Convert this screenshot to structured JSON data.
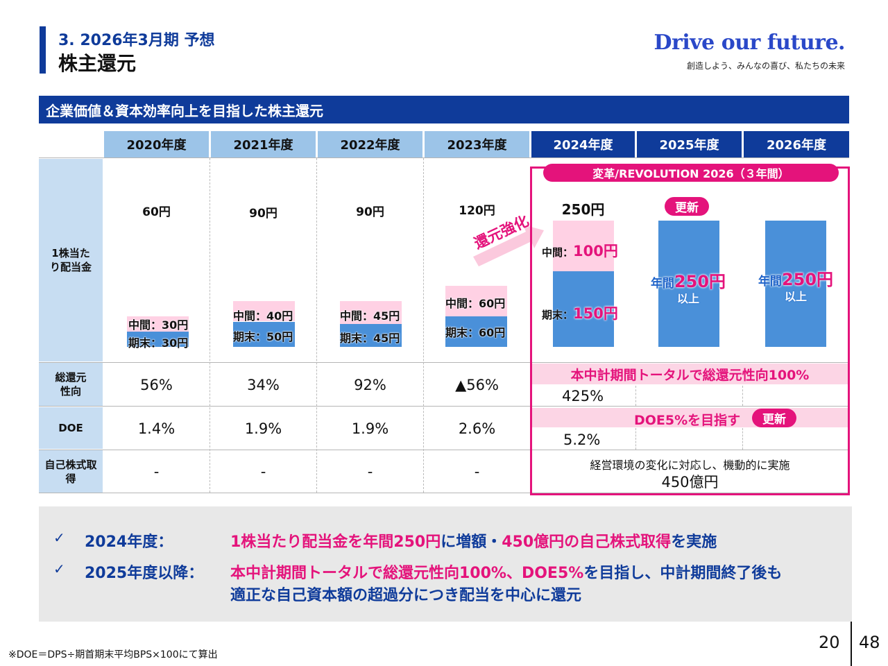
{
  "header": {
    "section": "3.  2026年3月期 予想",
    "title": "株主還元",
    "logo": "Drive our future.",
    "tagline": "創造しよう、みんなの喜び、私たちの未来"
  },
  "banner": "企業価値＆資本効率向上を目指した株主還元",
  "years": [
    "2020年度",
    "2021年度",
    "2022年度",
    "2023年度",
    "2024年度",
    "2025年度",
    "2026年度"
  ],
  "row_labels": {
    "dividend": "1株当たり配当金",
    "payout": "総還元性向",
    "doe": "DOE",
    "buyback": "自己株式取得"
  },
  "dividends": {
    "totals": [
      "60円",
      "90円",
      "90円",
      "120円",
      "250円"
    ],
    "interim": [
      "中間：30円",
      "中間：40円",
      "中間：45円",
      "中間：60円"
    ],
    "final": [
      "期末：30円",
      "期末：50円",
      "期末：45円",
      "期末：60円"
    ],
    "fy2024_interim_label": "中間：",
    "fy2024_interim_value": "100円",
    "fy2024_final_label": "期末：",
    "fy2024_final_value": "150円",
    "forecast_prefix": "年間",
    "forecast_value": "250円",
    "forecast_suffix": "以上",
    "segments_yen": {
      "interim": [
        30,
        40,
        45,
        60,
        100
      ],
      "final": [
        30,
        50,
        45,
        60,
        150
      ],
      "annual_forecast": [
        250,
        250
      ]
    }
  },
  "revolution_label": "変革/REVOLUTION 2026（３年間）",
  "badge_update": "更新",
  "arrow_text": "還元強化",
  "payout": {
    "values": [
      "56%",
      "34%",
      "92%",
      "▲56%"
    ],
    "fy2024": "425%",
    "target": "本中計期間トータルで総還元性向100%"
  },
  "doe": {
    "values": [
      "1.4%",
      "1.9%",
      "1.9%",
      "2.6%"
    ],
    "fy2024": "5.2%",
    "target": "DOE5%を目指す"
  },
  "buyback": {
    "values": [
      "-",
      "-",
      "-",
      "-"
    ],
    "note": "経営環境の変化に対応し、機動的に実施",
    "amount": "450億円"
  },
  "summary": {
    "check": "✓",
    "item1_label": "2024年度：",
    "item1_pink_a": "1株当たり配当金を年間250円",
    "item1_blue_a": "に増額・",
    "item1_pink_b": "450億円の自己株式取得",
    "item1_blue_b": "を実施",
    "item2_label": "2025年度以降：",
    "item2_pink_a": "本中計期間トータルで総還元性向100%、DOE5%",
    "item2_blue_a": "を目指し、中計期間終了後も",
    "item2_line2": "適正な自己資本額の超過分につき配当を中心に還元"
  },
  "footnote": "※DOE＝DPS÷期首期末平均BPS×100にて算出",
  "page": {
    "current": "20",
    "total": "48"
  },
  "colors": {
    "navy": "#0f3b9a",
    "magenta": "#e4137b",
    "bar_blue": "#4a90d9",
    "bar_pink": "#ffd1e4",
    "header_light": "#9cc4e8"
  }
}
